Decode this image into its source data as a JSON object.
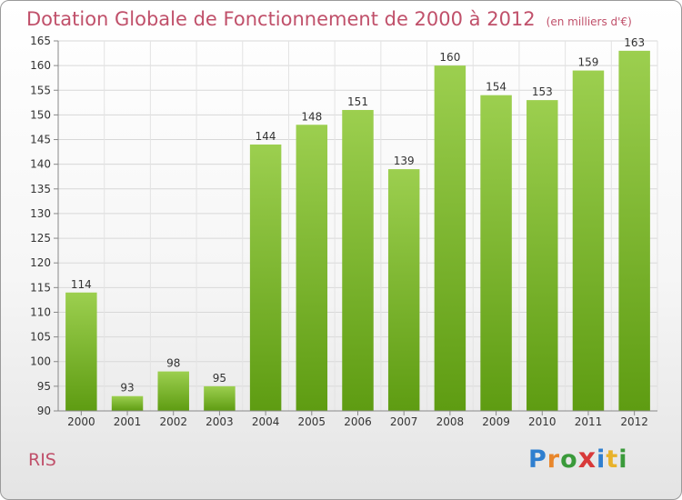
{
  "chart_data": {
    "type": "bar",
    "title": "Dotation Globale de Fonctionnement de 2000 à 2012",
    "subtitle": "(en milliers d'€)",
    "categories": [
      "2000",
      "2001",
      "2002",
      "2003",
      "2004",
      "2005",
      "2006",
      "2007",
      "2008",
      "2009",
      "2010",
      "2011",
      "2012"
    ],
    "values": [
      114,
      93,
      98,
      95,
      144,
      148,
      151,
      139,
      160,
      154,
      153,
      159,
      163
    ],
    "ylim": [
      90,
      165
    ],
    "yticks": [
      90,
      95,
      100,
      105,
      110,
      115,
      120,
      125,
      130,
      135,
      140,
      145,
      150,
      155,
      160,
      165
    ],
    "grid": true,
    "colors": {
      "bar_top": "#9ccf4f",
      "bar_bottom": "#5e9c12",
      "title": "#c0506a"
    }
  },
  "commune": "RIS",
  "brand": {
    "letters": [
      "P",
      "r",
      "o",
      "x",
      "i",
      "t",
      "i"
    ]
  }
}
